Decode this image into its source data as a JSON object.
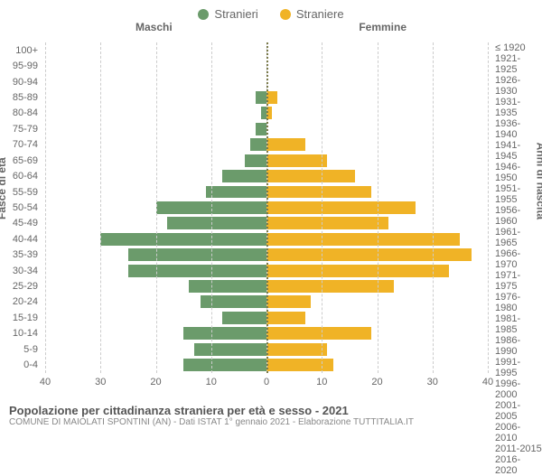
{
  "chart": {
    "type": "population-pyramid",
    "legend": {
      "male": {
        "label": "Stranieri",
        "color": "#6b9b6b"
      },
      "female": {
        "label": "Straniere",
        "color": "#f0b326"
      }
    },
    "column_titles": {
      "left": "Maschi",
      "right": "Femmine"
    },
    "axis_titles": {
      "left": "Fasce di età",
      "right": "Anni di nascita"
    },
    "x_max": 40,
    "x_ticks": [
      40,
      30,
      20,
      10,
      0,
      10,
      20,
      30,
      40
    ],
    "grid_color": "#cccccc",
    "center_line_color": "#7a7a4a",
    "background_color": "#ffffff",
    "tick_font_color": "#666666",
    "bins": [
      {
        "age": "100+",
        "birth": "≤ 1920",
        "m": 0,
        "f": 0
      },
      {
        "age": "95-99",
        "birth": "1921-1925",
        "m": 0,
        "f": 0
      },
      {
        "age": "90-94",
        "birth": "1926-1930",
        "m": 0,
        "f": 0
      },
      {
        "age": "85-89",
        "birth": "1931-1935",
        "m": 2,
        "f": 2
      },
      {
        "age": "80-84",
        "birth": "1936-1940",
        "m": 1,
        "f": 1
      },
      {
        "age": "75-79",
        "birth": "1941-1945",
        "m": 2,
        "f": 0
      },
      {
        "age": "70-74",
        "birth": "1946-1950",
        "m": 3,
        "f": 7
      },
      {
        "age": "65-69",
        "birth": "1951-1955",
        "m": 4,
        "f": 11
      },
      {
        "age": "60-64",
        "birth": "1956-1960",
        "m": 8,
        "f": 16
      },
      {
        "age": "55-59",
        "birth": "1961-1965",
        "m": 11,
        "f": 19
      },
      {
        "age": "50-54",
        "birth": "1966-1970",
        "m": 20,
        "f": 27
      },
      {
        "age": "45-49",
        "birth": "1971-1975",
        "m": 18,
        "f": 22
      },
      {
        "age": "40-44",
        "birth": "1976-1980",
        "m": 30,
        "f": 35
      },
      {
        "age": "35-39",
        "birth": "1981-1985",
        "m": 25,
        "f": 37
      },
      {
        "age": "30-34",
        "birth": "1986-1990",
        "m": 25,
        "f": 33
      },
      {
        "age": "25-29",
        "birth": "1991-1995",
        "m": 14,
        "f": 23
      },
      {
        "age": "20-24",
        "birth": "1996-2000",
        "m": 12,
        "f": 8
      },
      {
        "age": "15-19",
        "birth": "2001-2005",
        "m": 8,
        "f": 7
      },
      {
        "age": "10-14",
        "birth": "2006-2010",
        "m": 15,
        "f": 19
      },
      {
        "age": "5-9",
        "birth": "2011-2015",
        "m": 13,
        "f": 11
      },
      {
        "age": "0-4",
        "birth": "2016-2020",
        "m": 15,
        "f": 12
      }
    ]
  },
  "footer": {
    "title": "Popolazione per cittadinanza straniera per età e sesso - 2021",
    "subtitle": "COMUNE DI MAIOLATI SPONTINI (AN) - Dati ISTAT 1° gennaio 2021 - Elaborazione TUTTITALIA.IT"
  }
}
